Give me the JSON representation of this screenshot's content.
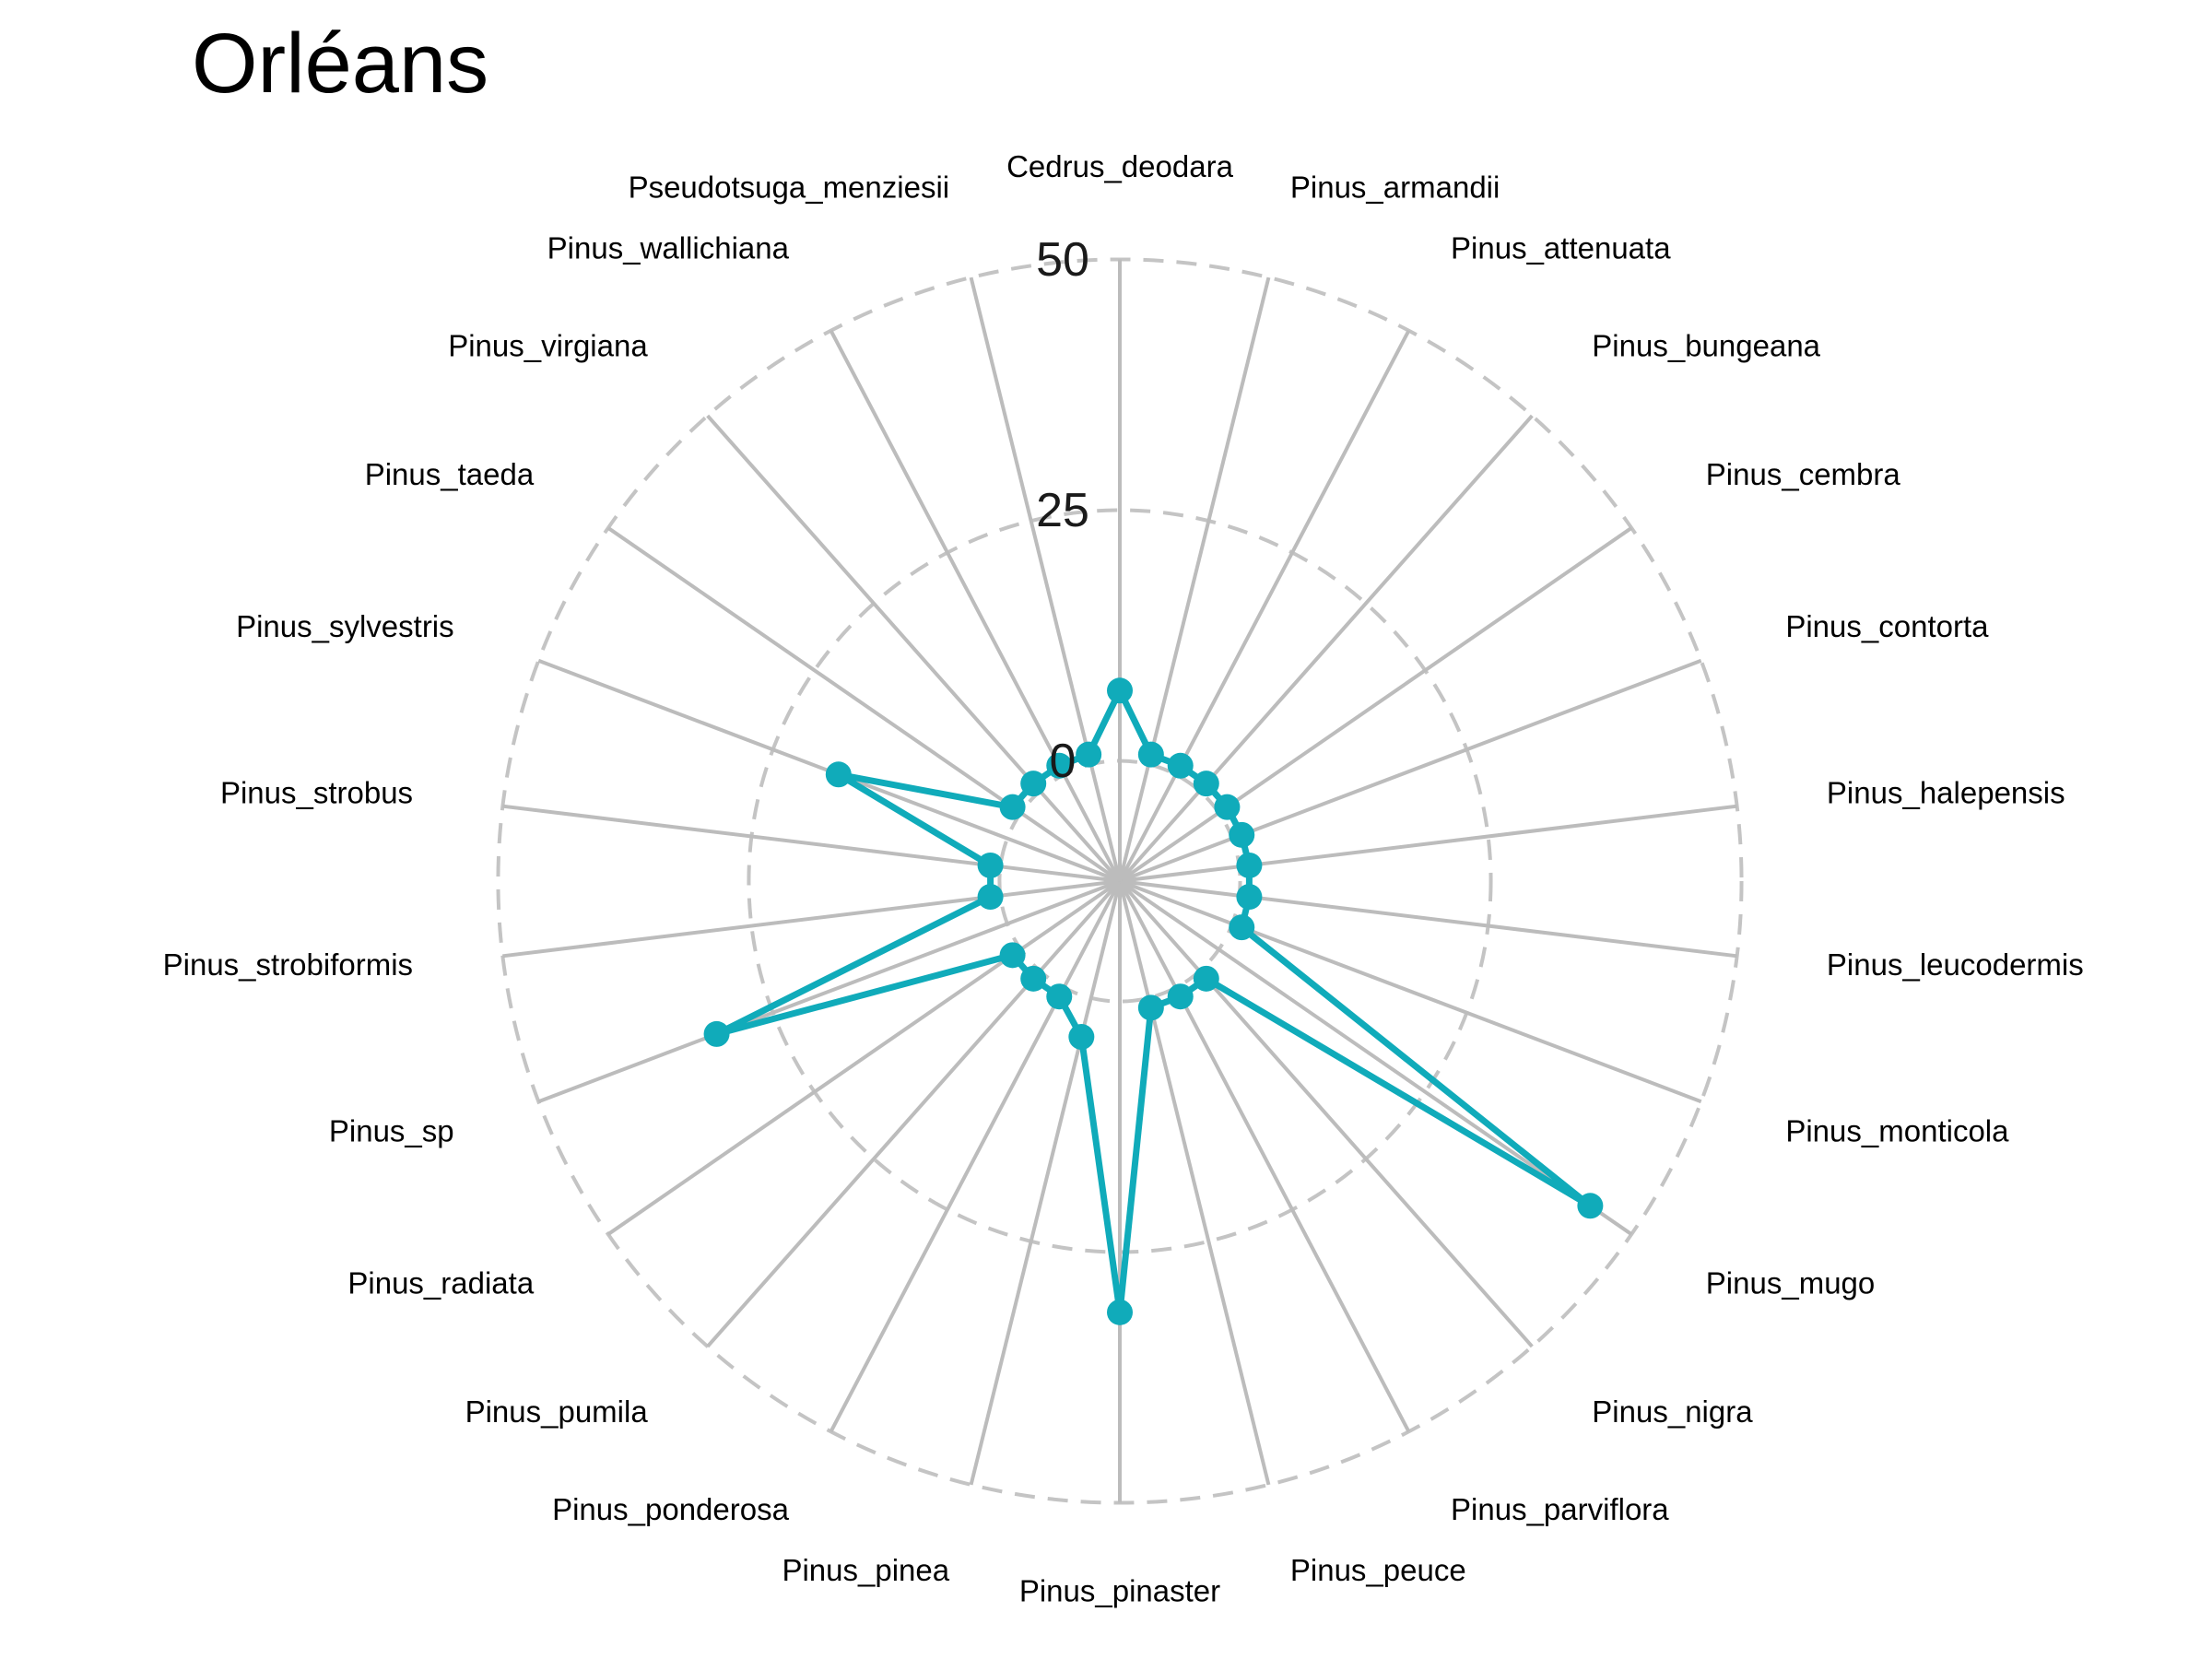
{
  "title": "Orléans",
  "chart_data": {
    "type": "radar",
    "title": "Orléans",
    "categories": [
      "Cedrus_deodara",
      "Pinus_armandii",
      "Pinus_attenuata",
      "Pinus_bungeana",
      "Pinus_cembra",
      "Pinus_contorta",
      "Pinus_halepensis",
      "Pinus_leucodermis",
      "Pinus_monticola",
      "Pinus_mugo",
      "Pinus_nigra",
      "Pinus_parviflora",
      "Pinus_peuce",
      "Pinus_pinaster",
      "Pinus_pinea",
      "Pinus_ponderosa",
      "Pinus_pumila",
      "Pinus_radiata",
      "Pinus_sp",
      "Pinus_strobiformis",
      "Pinus_strobus",
      "Pinus_sylvestris",
      "Pinus_taeda",
      "Pinus_virgiana",
      "Pinus_wallichiana",
      "Pseudotsuga_menziesii"
    ],
    "series": [
      {
        "values": [
          7,
          1,
          1,
          1,
          1,
          1,
          1,
          1,
          1,
          45,
          1,
          1,
          1,
          31,
          4,
          1,
          1,
          1,
          31,
          1,
          1,
          18,
          1,
          1,
          1,
          1
        ],
        "color": "#10abba"
      }
    ],
    "radial_ticks": [
      "0",
      "25",
      "50"
    ],
    "rlim": [
      -12,
      50
    ],
    "grid": true
  }
}
